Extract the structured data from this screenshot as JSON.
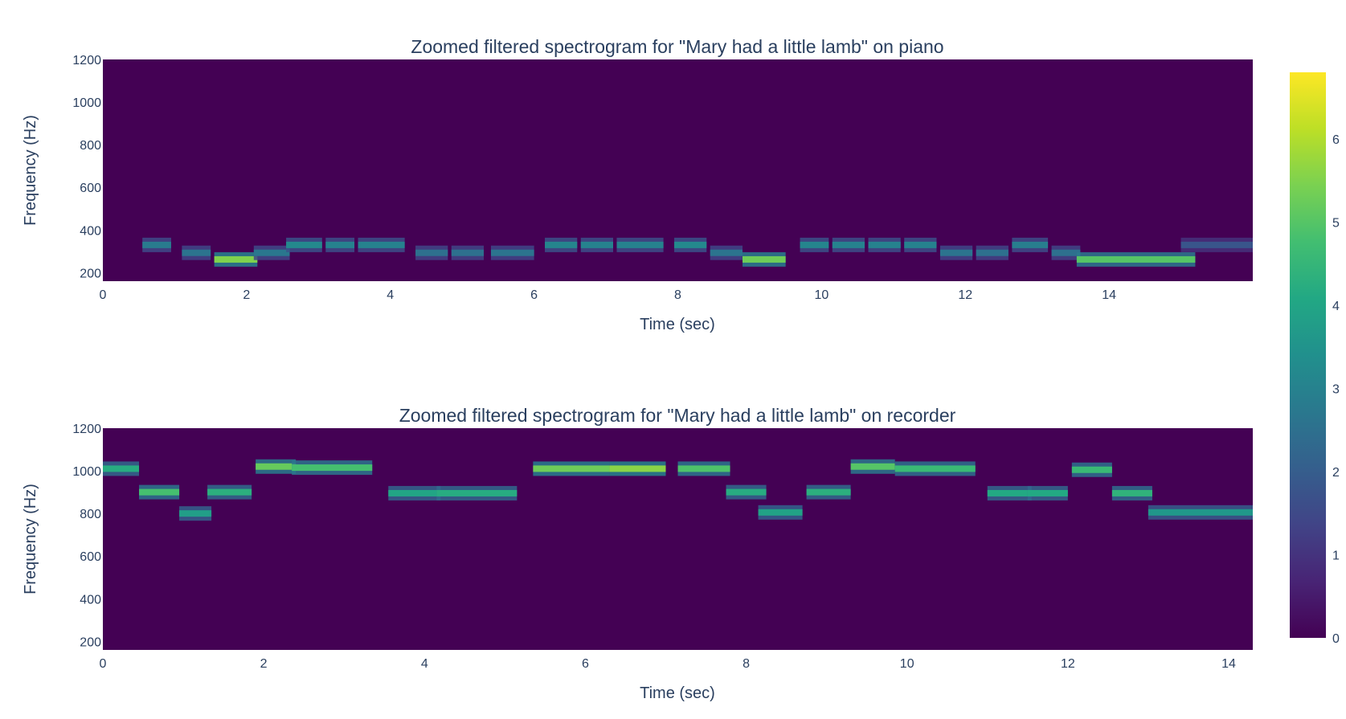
{
  "chart_data": [
    {
      "type": "heatmap",
      "title": "Zoomed filtered spectrogram for \"Mary had a little lamb\" on piano",
      "xlabel": "Time (sec)",
      "ylabel": "Frequency (Hz)",
      "xlim": [
        0,
        16
      ],
      "ylim": [
        160,
        1200
      ],
      "xticks": [
        "0",
        "2",
        "4",
        "6",
        "8",
        "10",
        "12",
        "14"
      ],
      "yticks": [
        "200",
        "400",
        "600",
        "800",
        "1000",
        "1200"
      ],
      "background_value": 0,
      "notes": [
        {
          "t0": 0.55,
          "t1": 0.95,
          "f": 330,
          "v": 2.8
        },
        {
          "t0": 1.1,
          "t1": 1.5,
          "f": 293,
          "v": 2.6
        },
        {
          "t0": 1.55,
          "t1": 2.15,
          "f": 262,
          "v": 5.5
        },
        {
          "t0": 2.1,
          "t1": 2.6,
          "f": 293,
          "v": 2.7
        },
        {
          "t0": 2.55,
          "t1": 3.05,
          "f": 330,
          "v": 3.2
        },
        {
          "t0": 3.1,
          "t1": 3.5,
          "f": 330,
          "v": 3.0
        },
        {
          "t0": 3.55,
          "t1": 4.2,
          "f": 330,
          "v": 3.0
        },
        {
          "t0": 4.35,
          "t1": 4.8,
          "f": 293,
          "v": 2.5
        },
        {
          "t0": 4.85,
          "t1": 5.3,
          "f": 293,
          "v": 2.5
        },
        {
          "t0": 5.4,
          "t1": 6.0,
          "f": 293,
          "v": 2.6
        },
        {
          "t0": 6.15,
          "t1": 6.6,
          "f": 330,
          "v": 3.1
        },
        {
          "t0": 6.65,
          "t1": 7.1,
          "f": 330,
          "v": 3.0
        },
        {
          "t0": 7.15,
          "t1": 7.8,
          "f": 330,
          "v": 3.0
        },
        {
          "t0": 7.95,
          "t1": 8.4,
          "f": 330,
          "v": 3.2
        },
        {
          "t0": 8.45,
          "t1": 8.9,
          "f": 293,
          "v": 2.6
        },
        {
          "t0": 8.9,
          "t1": 9.5,
          "f": 262,
          "v": 5.3
        },
        {
          "t0": 9.7,
          "t1": 10.1,
          "f": 330,
          "v": 3.1
        },
        {
          "t0": 10.15,
          "t1": 10.6,
          "f": 330,
          "v": 3.0
        },
        {
          "t0": 10.65,
          "t1": 11.1,
          "f": 330,
          "v": 3.0
        },
        {
          "t0": 11.15,
          "t1": 11.6,
          "f": 330,
          "v": 3.0
        },
        {
          "t0": 11.65,
          "t1": 12.1,
          "f": 293,
          "v": 2.6
        },
        {
          "t0": 12.15,
          "t1": 12.6,
          "f": 293,
          "v": 2.5
        },
        {
          "t0": 12.65,
          "t1": 13.15,
          "f": 330,
          "v": 2.9
        },
        {
          "t0": 13.2,
          "t1": 13.6,
          "f": 293,
          "v": 2.5
        },
        {
          "t0": 13.55,
          "t1": 15.2,
          "f": 262,
          "v": 5.0
        },
        {
          "t0": 15.0,
          "t1": 16.0,
          "f": 330,
          "v": 1.8
        }
      ]
    },
    {
      "type": "heatmap",
      "title": "Zoomed filtered spectrogram for \"Mary had a little lamb\" on recorder",
      "xlabel": "Time (sec)",
      "ylabel": "Frequency (Hz)",
      "xlim": [
        0,
        14.3
      ],
      "ylim": [
        160,
        1200
      ],
      "xticks": [
        "0",
        "2",
        "4",
        "6",
        "8",
        "10",
        "12",
        "14"
      ],
      "yticks": [
        "200",
        "400",
        "600",
        "800",
        "1000",
        "1200"
      ],
      "background_value": 0,
      "notes": [
        {
          "t0": 0.0,
          "t1": 0.45,
          "f": 1010,
          "v": 4.2
        },
        {
          "t0": 0.45,
          "t1": 0.95,
          "f": 900,
          "v": 4.8
        },
        {
          "t0": 0.95,
          "t1": 1.35,
          "f": 800,
          "v": 3.8
        },
        {
          "t0": 1.3,
          "t1": 1.85,
          "f": 900,
          "v": 4.3
        },
        {
          "t0": 1.9,
          "t1": 2.4,
          "f": 1020,
          "v": 5.2
        },
        {
          "t0": 2.35,
          "t1": 3.35,
          "f": 1015,
          "v": 4.8
        },
        {
          "t0": 3.55,
          "t1": 4.2,
          "f": 895,
          "v": 4.0
        },
        {
          "t0": 4.15,
          "t1": 5.15,
          "f": 895,
          "v": 4.2
        },
        {
          "t0": 5.35,
          "t1": 6.3,
          "f": 1010,
          "v": 5.3
        },
        {
          "t0": 6.3,
          "t1": 7.0,
          "f": 1010,
          "v": 5.6
        },
        {
          "t0": 7.15,
          "t1": 7.8,
          "f": 1010,
          "v": 4.9
        },
        {
          "t0": 7.75,
          "t1": 8.25,
          "f": 900,
          "v": 4.2
        },
        {
          "t0": 8.15,
          "t1": 8.7,
          "f": 805,
          "v": 3.9
        },
        {
          "t0": 8.75,
          "t1": 9.3,
          "f": 900,
          "v": 4.3
        },
        {
          "t0": 9.3,
          "t1": 9.85,
          "f": 1020,
          "v": 5.0
        },
        {
          "t0": 9.85,
          "t1": 10.85,
          "f": 1010,
          "v": 4.6
        },
        {
          "t0": 11.0,
          "t1": 11.55,
          "f": 895,
          "v": 4.1
        },
        {
          "t0": 11.5,
          "t1": 12.0,
          "f": 895,
          "v": 4.1
        },
        {
          "t0": 12.05,
          "t1": 12.55,
          "f": 1005,
          "v": 4.6
        },
        {
          "t0": 12.55,
          "t1": 13.05,
          "f": 895,
          "v": 4.4
        },
        {
          "t0": 13.0,
          "t1": 14.3,
          "f": 805,
          "v": 3.6
        }
      ]
    }
  ],
  "colorbar": {
    "colorscale": "viridis",
    "min": 0,
    "max": 6.8,
    "ticks": [
      "0",
      "1",
      "2",
      "3",
      "4",
      "5",
      "6"
    ]
  }
}
